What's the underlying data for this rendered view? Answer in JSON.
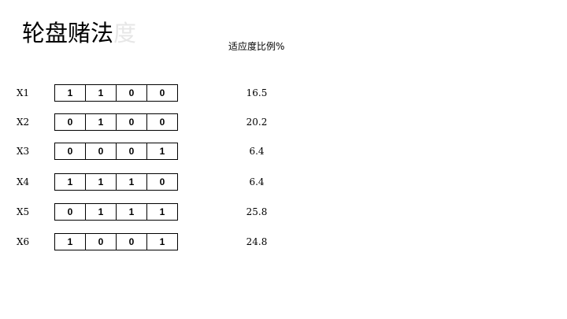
{
  "title": {
    "main": "轮盘赌法",
    "faded": "度"
  },
  "column_header": "适应度比例%",
  "rows": [
    {
      "label": "X1",
      "genes": [
        "1",
        "1",
        "0",
        "0"
      ],
      "ratio": "16.5"
    },
    {
      "label": "X2",
      "genes": [
        "0",
        "1",
        "0",
        "0"
      ],
      "ratio": "20.2"
    },
    {
      "label": "X3",
      "genes": [
        "0",
        "0",
        "0",
        "1"
      ],
      "ratio": "6.4"
    },
    {
      "label": "X4",
      "genes": [
        "1",
        "1",
        "1",
        "0"
      ],
      "ratio": "6.4"
    },
    {
      "label": "X5",
      "genes": [
        "0",
        "1",
        "1",
        "1"
      ],
      "ratio": "25.8"
    },
    {
      "label": "X6",
      "genes": [
        "1",
        "0",
        "0",
        "1"
      ],
      "ratio": "24.8"
    }
  ]
}
